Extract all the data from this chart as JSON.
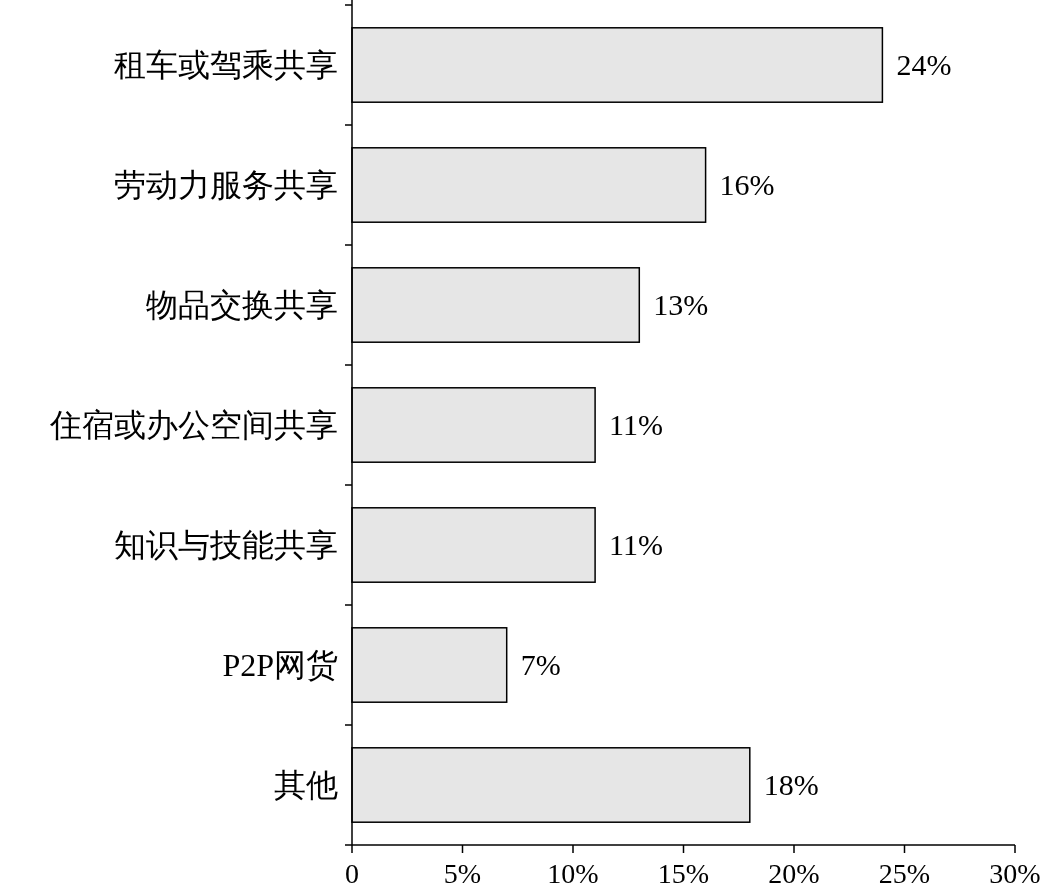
{
  "chart_data": {
    "type": "bar",
    "orientation": "horizontal",
    "categories": [
      "租车或驾乘共享",
      "劳动力服务共享",
      "物品交换共享",
      "住宿或办公空间共享",
      "知识与技能共享",
      "P2P网货",
      "其他"
    ],
    "values": [
      24,
      16,
      13,
      11,
      11,
      7,
      18
    ],
    "value_labels": [
      "24%",
      "16%",
      "13%",
      "11%",
      "11%",
      "7%",
      "18%"
    ],
    "color": "#e6e6e6",
    "xlim": [
      0,
      30
    ],
    "xticks": [
      0,
      {
        "value": 5,
        "label": "5%"
      },
      {
        "value": 10,
        "label": "10%"
      },
      {
        "value": 15,
        "label": "15%"
      },
      {
        "value": 20,
        "label": "20%"
      },
      {
        "value": 25,
        "label": "25%"
      },
      {
        "value": 30,
        "label": "30%"
      }
    ]
  }
}
